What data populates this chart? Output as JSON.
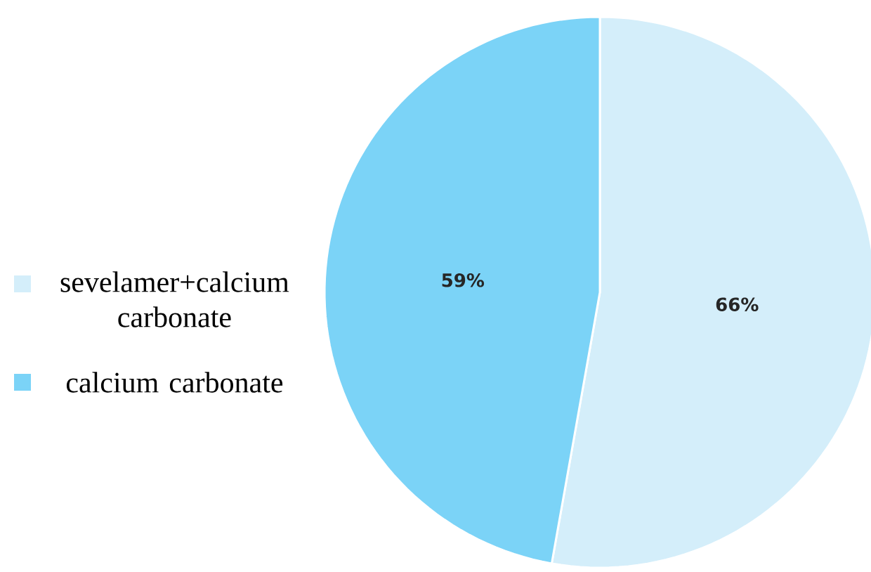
{
  "chart_data": {
    "type": "pie",
    "categories": [
      "sevelamer+calcium carbonate",
      "calcium carbonate"
    ],
    "values": [
      66,
      59
    ],
    "colors": [
      "#d4eefa",
      "#7bd3f7"
    ],
    "data_labels": true,
    "value_labels": [
      "66%",
      "59%"
    ],
    "legend": "left"
  }
}
